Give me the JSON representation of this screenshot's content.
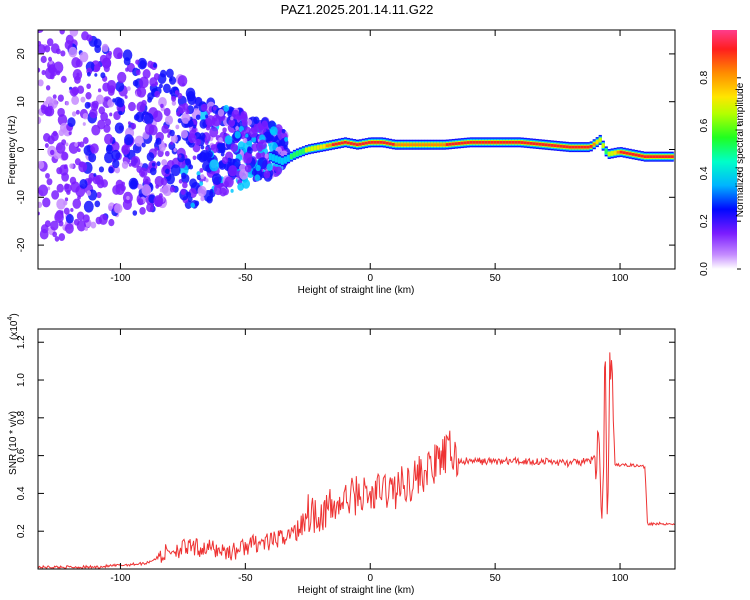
{
  "title": "PAZ1.2025.201.14.11.G22",
  "colors": {
    "snr_line": "#ee3333",
    "ridge": [
      "#3b2dff",
      "#00c8ff",
      "#3cff4a",
      "#ffe000",
      "#ff8a00",
      "#ff2020"
    ],
    "noise": "#7a2cff"
  },
  "chart_data": [
    {
      "type": "heatmap",
      "xlabel": "Height of straight line (km)",
      "ylabel": "Frequency (Hz)",
      "xlim": [
        -133,
        122
      ],
      "ylim": [
        -25,
        25
      ],
      "xticks": [
        -100,
        -50,
        0,
        50,
        100
      ],
      "xtick_labels": [
        "-100",
        "-50",
        "0",
        "50",
        "100"
      ],
      "yticks": [
        20,
        10,
        0,
        -10,
        -20
      ],
      "ytick_labels": [
        "20",
        "10",
        "0",
        "-10",
        "-20"
      ],
      "colorbar": {
        "label": "Normalized spectral amplitude",
        "range": [
          0,
          1
        ],
        "ticks": [
          0.0,
          0.2,
          0.4,
          0.6,
          0.8
        ],
        "tick_labels": [
          "0.0",
          "0.2",
          "0.4",
          "0.6",
          "0.8"
        ],
        "colormap": [
          "#ffffff",
          "#8a2be2",
          "#0000ff",
          "#00ffff",
          "#00ff00",
          "#ffff00",
          "#ff8800",
          "#ff0000",
          "#ff3399"
        ]
      },
      "ridge_frequency": {
        "x": [
          -40,
          -35,
          -30,
          -25,
          -20,
          -15,
          -10,
          -5,
          0,
          5,
          10,
          20,
          30,
          40,
          50,
          60,
          70,
          80,
          88,
          92,
          95,
          100,
          110,
          122
        ],
        "y": [
          -1.5,
          -2.5,
          -1.0,
          0.0,
          0.5,
          1.0,
          1.5,
          1.0,
          1.5,
          1.5,
          1.0,
          1.0,
          1.0,
          1.5,
          1.5,
          1.5,
          1.0,
          0.5,
          0.5,
          2.0,
          -1.0,
          -0.5,
          -1.5,
          -1.5
        ],
        "amplitude": [
          0.3,
          0.35,
          0.45,
          0.55,
          0.7,
          0.85,
          0.95,
          0.9,
          0.95,
          0.95,
          0.85,
          0.8,
          0.85,
          0.9,
          0.95,
          0.95,
          0.9,
          0.85,
          0.9,
          0.6,
          0.5,
          0.85,
          0.95,
          0.95
        ]
      }
    },
    {
      "type": "line",
      "xlabel": "Height of straight line (km)",
      "ylabel": "SNR (10 * v/v)",
      "yscale_label": "(x10",
      "yscale_exp": "4",
      "xlim": [
        -133,
        122
      ],
      "ylim": [
        0,
        1.27
      ],
      "xticks": [
        -100,
        -50,
        0,
        50,
        100
      ],
      "xtick_labels": [
        "-100",
        "-50",
        "0",
        "50",
        "100"
      ],
      "yticks": [
        0.2,
        0.4,
        0.6,
        0.8,
        1.0,
        1.2
      ],
      "ytick_labels": [
        "0.2",
        "0.4",
        "0.6",
        "0.8",
        "1.0",
        "1.2"
      ],
      "series": [
        {
          "x": [
            -133,
            -110,
            -90,
            -85,
            -80,
            -75,
            -70,
            -65,
            -60,
            -55,
            -50,
            -45,
            -40,
            -35,
            -30,
            -27,
            -25,
            -22,
            -20,
            -15,
            -10,
            -5,
            0,
            5,
            10,
            15,
            20,
            25,
            30,
            32,
            35,
            40,
            50,
            60,
            70,
            80,
            88,
            92,
            93,
            94,
            95,
            96,
            98,
            100,
            105,
            110,
            111,
            115,
            122
          ],
          "y": [
            0.01,
            0.01,
            0.03,
            0.06,
            0.1,
            0.11,
            0.11,
            0.11,
            0.1,
            0.09,
            0.12,
            0.14,
            0.14,
            0.17,
            0.2,
            0.27,
            0.3,
            0.3,
            0.3,
            0.32,
            0.36,
            0.4,
            0.38,
            0.42,
            0.42,
            0.46,
            0.5,
            0.54,
            0.6,
            0.63,
            0.57,
            0.57,
            0.57,
            0.57,
            0.57,
            0.56,
            0.57,
            0.62,
            0.25,
            1.2,
            0.12,
            1.22,
            0.55,
            0.55,
            0.55,
            0.54,
            0.24,
            0.24,
            0.24
          ]
        }
      ]
    }
  ]
}
